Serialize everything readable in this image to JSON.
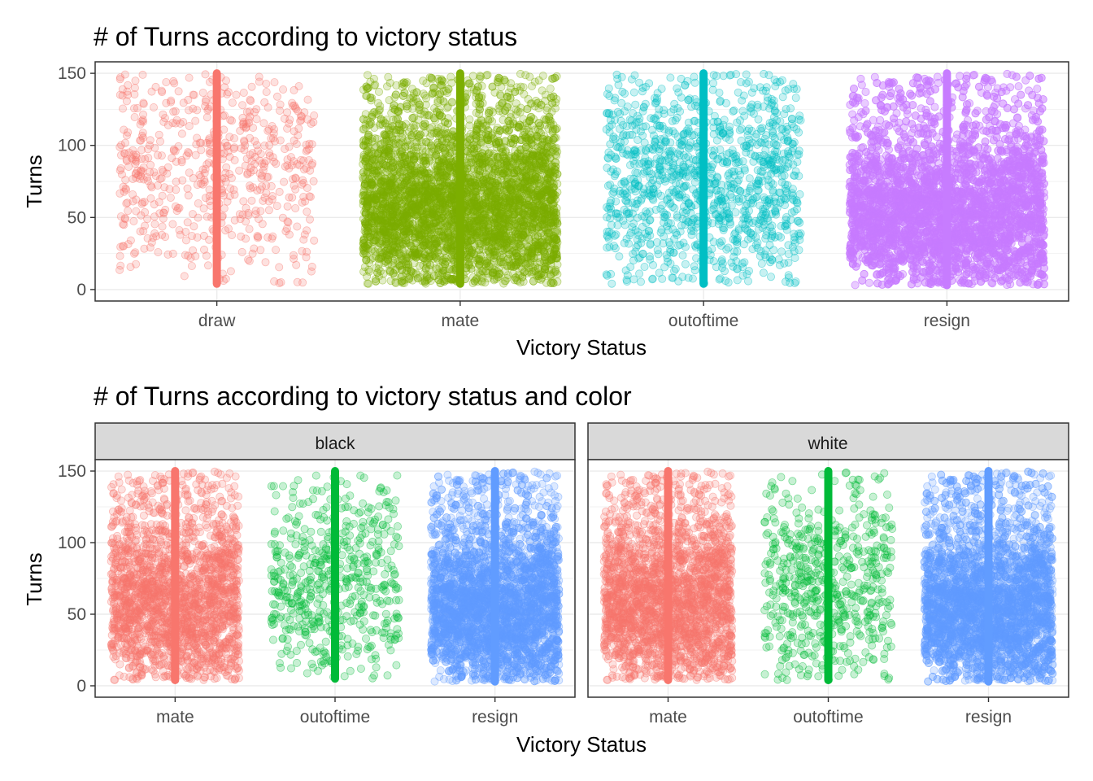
{
  "chart_data": [
    {
      "type": "scatter",
      "subtype": "jitter",
      "title": "# of Turns according to victory status",
      "xlabel": "Victory Status",
      "ylabel": "Turns",
      "ylim": [
        0,
        150
      ],
      "yticks": [
        0,
        50,
        100,
        150
      ],
      "categories": [
        "draw",
        "mate",
        "outoftime",
        "resign"
      ],
      "colors": [
        "#F8766D",
        "#7CAE00",
        "#00BFC4",
        "#C77CFF"
      ],
      "series": [
        {
          "category": "draw",
          "point_count": 600,
          "range": [
            4,
            150
          ],
          "center": 85,
          "spread": 40
        },
        {
          "category": "mate",
          "point_count": 4500,
          "range": [
            4,
            150
          ],
          "center": 55,
          "spread": 30
        },
        {
          "category": "outoftime",
          "point_count": 1200,
          "range": [
            4,
            150
          ],
          "center": 70,
          "spread": 35
        },
        {
          "category": "resign",
          "point_count": 7000,
          "range": [
            3,
            150
          ],
          "center": 50,
          "spread": 28
        }
      ],
      "grid": true,
      "legend": "none"
    },
    {
      "type": "scatter",
      "subtype": "jitter",
      "title": "# of Turns according to victory status and color",
      "xlabel": "Victory Status",
      "ylabel": "Turns",
      "ylim": [
        0,
        150
      ],
      "yticks": [
        0,
        50,
        100,
        150
      ],
      "categories": [
        "mate",
        "outoftime",
        "resign"
      ],
      "colors": [
        "#F8766D",
        "#00BA38",
        "#619CFF"
      ],
      "facets": [
        {
          "label": "black",
          "series": [
            {
              "category": "mate",
              "point_count": 2100,
              "range": [
                4,
                150
              ],
              "center": 55,
              "spread": 30
            },
            {
              "category": "outoftime",
              "point_count": 550,
              "range": [
                5,
                150
              ],
              "center": 70,
              "spread": 33
            },
            {
              "category": "resign",
              "point_count": 3500,
              "range": [
                3,
                150
              ],
              "center": 50,
              "spread": 28
            }
          ]
        },
        {
          "label": "white",
          "series": [
            {
              "category": "mate",
              "point_count": 2400,
              "range": [
                4,
                150
              ],
              "center": 55,
              "spread": 30
            },
            {
              "category": "outoftime",
              "point_count": 600,
              "range": [
                4,
                150
              ],
              "center": 65,
              "spread": 33
            },
            {
              "category": "resign",
              "point_count": 3500,
              "range": [
                3,
                150
              ],
              "center": 50,
              "spread": 28
            }
          ]
        }
      ],
      "grid": true,
      "legend": "none"
    }
  ]
}
